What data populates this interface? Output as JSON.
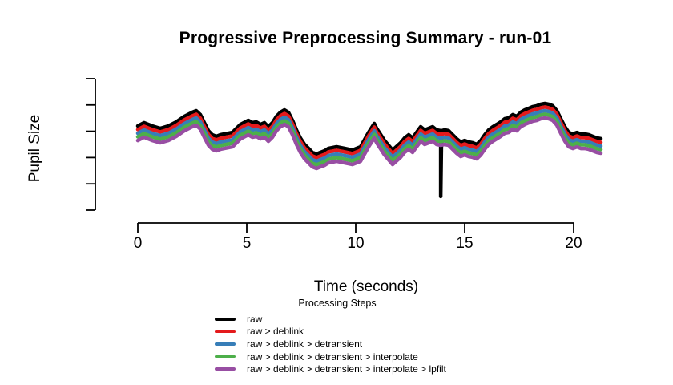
{
  "colors": {
    "background": "#ffffff",
    "axis": "#000000",
    "text": "#000000"
  },
  "chart_data": {
    "type": "line",
    "title": "Progressive Preprocessing Summary - run-01",
    "xlabel": "Time (seconds)",
    "ylabel": "Pupil Size",
    "legend_title": "Processing Steps",
    "legend_position": "bottom",
    "grid": false,
    "xlim": [
      0,
      21.5
    ],
    "ylim": [
      0,
      1
    ],
    "xticks": [
      0,
      5,
      10,
      15,
      20
    ],
    "yticks": [
      0,
      0.2,
      0.4,
      0.6,
      0.8,
      1.0
    ],
    "yticks_labeled": false,
    "x": [
      0.0,
      0.29,
      0.66,
      1.03,
      1.4,
      1.76,
      2.13,
      2.5,
      2.68,
      2.87,
      3.05,
      3.24,
      3.42,
      3.6,
      3.79,
      3.97,
      4.34,
      4.71,
      5.07,
      5.26,
      5.44,
      5.63,
      5.81,
      5.99,
      6.18,
      6.36,
      6.54,
      6.73,
      6.91,
      7.1,
      7.28,
      7.46,
      7.65,
      7.83,
      8.01,
      8.2,
      8.38,
      8.57,
      8.75,
      9.12,
      9.49,
      9.85,
      10.22,
      10.59,
      10.85,
      10.96,
      11.32,
      11.69,
      12.06,
      12.24,
      12.43,
      12.61,
      12.79,
      12.98,
      13.16,
      13.35,
      13.53,
      13.71,
      13.9,
      14.08,
      14.26,
      14.45,
      14.63,
      14.82,
      15.0,
      15.18,
      15.37,
      15.55,
      15.74,
      15.92,
      16.1,
      16.29,
      16.47,
      16.65,
      16.84,
      17.02,
      17.21,
      17.39,
      17.57,
      17.76,
      17.94,
      18.12,
      18.31,
      18.49,
      18.68,
      18.86,
      19.04,
      19.23,
      19.41,
      19.6,
      19.78,
      19.96,
      20.15,
      20.33,
      20.51,
      20.7,
      20.88,
      21.07,
      21.25
    ],
    "base_values": [
      0.64,
      0.665,
      0.64,
      0.622,
      0.64,
      0.671,
      0.713,
      0.744,
      0.756,
      0.726,
      0.665,
      0.604,
      0.573,
      0.561,
      0.573,
      0.579,
      0.591,
      0.652,
      0.683,
      0.665,
      0.671,
      0.652,
      0.665,
      0.634,
      0.665,
      0.713,
      0.744,
      0.762,
      0.744,
      0.683,
      0.61,
      0.549,
      0.5,
      0.47,
      0.439,
      0.427,
      0.439,
      0.451,
      0.47,
      0.482,
      0.47,
      0.457,
      0.482,
      0.591,
      0.659,
      0.622,
      0.53,
      0.457,
      0.512,
      0.549,
      0.573,
      0.549,
      0.591,
      0.634,
      0.61,
      0.622,
      0.634,
      0.61,
      0.604,
      0.61,
      0.604,
      0.573,
      0.543,
      0.518,
      0.53,
      0.518,
      0.512,
      0.5,
      0.53,
      0.573,
      0.61,
      0.634,
      0.652,
      0.671,
      0.695,
      0.701,
      0.726,
      0.713,
      0.744,
      0.762,
      0.774,
      0.787,
      0.793,
      0.805,
      0.811,
      0.805,
      0.793,
      0.756,
      0.695,
      0.634,
      0.591,
      0.579,
      0.591,
      0.579,
      0.579,
      0.573,
      0.561,
      0.549,
      0.543
    ],
    "series": [
      {
        "name": "raw",
        "color": "#000000",
        "offset": 0,
        "blink_artifact": {
          "time": 13.9,
          "min_value": 0.104
        }
      },
      {
        "name": "raw > deblink",
        "color": "#e41a1c",
        "offset": -0.027
      },
      {
        "name": "raw > deblink > detransient",
        "color": "#377eb8",
        "offset": -0.055
      },
      {
        "name": "raw > deblink > detransient > interpolate",
        "color": "#4daf4a",
        "offset": -0.082
      },
      {
        "name": "raw > deblink > detransient > interpolate > lpfilt",
        "color": "#984ea3",
        "offset": -0.11
      }
    ],
    "note": "Series are vertically offset copies of the same pupil trace; y-axis ticks are unlabeled; only the raw trace shows the downward blink spike near 13.9 s."
  }
}
